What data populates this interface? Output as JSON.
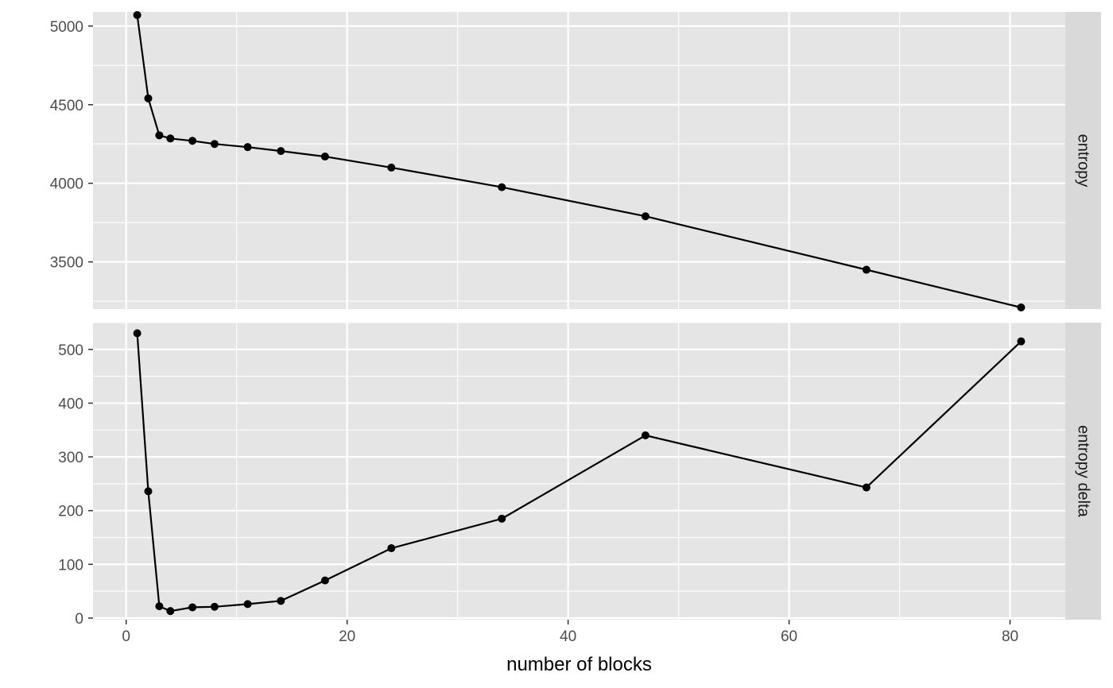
{
  "chart_data": {
    "type": "line",
    "xlabel": "number of blocks",
    "x_ticks": [
      0,
      20,
      40,
      60,
      80
    ],
    "xlim": [
      -3,
      85
    ],
    "grid": true,
    "legend": "none",
    "colors": {
      "panel_bg": "#e5e5e5",
      "strip_bg": "#d9d9d9",
      "grid": "#ffffff",
      "line": "#000000"
    },
    "panels": [
      {
        "strip_label": "entropy",
        "ylim": [
          3200,
          5090
        ],
        "y_ticks": [
          3500,
          4000,
          4500,
          5000
        ],
        "x": [
          1,
          2,
          3,
          4,
          6,
          8,
          11,
          14,
          18,
          24,
          34,
          47,
          67,
          81
        ],
        "y": [
          5070,
          4540,
          4305,
          4285,
          4270,
          4250,
          4230,
          4205,
          4170,
          4100,
          3975,
          3790,
          3450,
          3210
        ]
      },
      {
        "strip_label": "entropy delta",
        "ylim": [
          -3,
          550
        ],
        "y_ticks": [
          0,
          100,
          200,
          300,
          400,
          500
        ],
        "x": [
          1,
          2,
          3,
          4,
          6,
          8,
          11,
          14,
          18,
          24,
          34,
          47,
          67,
          81
        ],
        "y": [
          530,
          236,
          22,
          13,
          20,
          21,
          26,
          32,
          70,
          130,
          185,
          340,
          243,
          515
        ]
      }
    ]
  }
}
